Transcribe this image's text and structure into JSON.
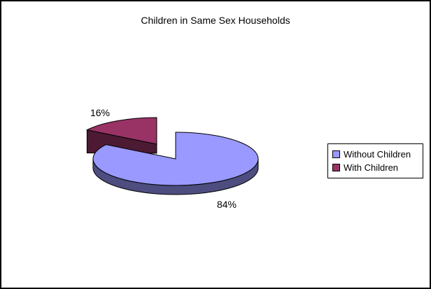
{
  "frame": {
    "background": "#FFFFFF",
    "border_color": "#000000"
  },
  "chart_data": {
    "type": "pie",
    "style": "3d-exploded",
    "title": "Children in Same Sex Households",
    "categories": [
      "Without Children",
      "With Children"
    ],
    "values": [
      84,
      16
    ],
    "unit": "percent",
    "data_labels": [
      "84%",
      "16%"
    ],
    "colors": [
      "#9999FF",
      "#993366"
    ],
    "side_colors": [
      "#4D4D80",
      "#4D1A33"
    ],
    "exploded_slice_index": 1,
    "start_angle": "12-o'clock",
    "direction": "clockwise",
    "legend": {
      "position": "right",
      "entries": [
        "Without Children",
        "With Children"
      ]
    }
  }
}
